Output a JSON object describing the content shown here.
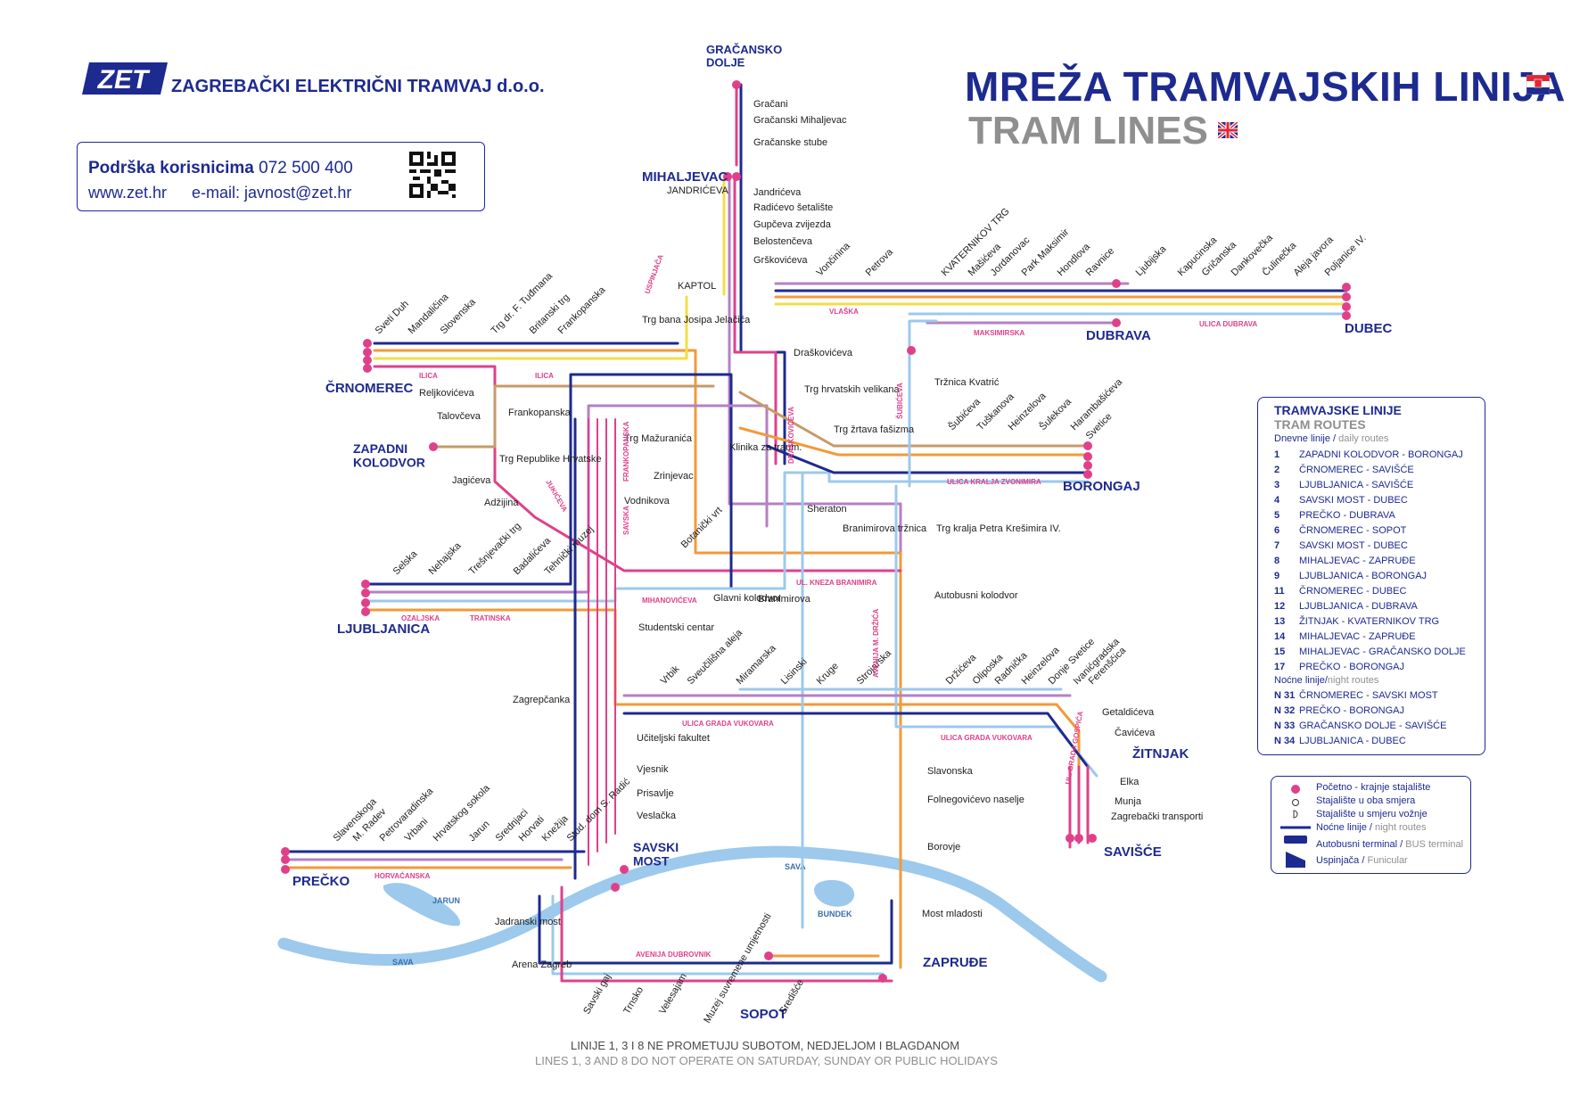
{
  "header": {
    "logo_text": "ZET",
    "company": "ZAGREBAČKI ELEKTRIČNI TRAMVAJ d.o.o.",
    "support_label": "Podrška korisnicima",
    "support_phone": "072 500 400",
    "website": "www.zet.hr",
    "email": "e-mail: javnost@zet.hr",
    "title_hr": "MREŽA TRAMVAJSKIH LINIJA",
    "title_en": "TRAM LINES"
  },
  "colors": {
    "navy": "#1d2a8f",
    "pink": "#e0408a",
    "orange": "#f29a3a",
    "yellow": "#f5dc4a",
    "purple": "#b57fc6",
    "blue": "#3a6fb0",
    "gray": "#8f8f8f",
    "river": "#9cc9ec"
  },
  "terminals": [
    {
      "name": "GRAČANSKO\nDOLJE"
    },
    {
      "name": "MIHALJEVAC"
    },
    {
      "name": "ČRNOMEREC"
    },
    {
      "name": "ZAPADNI\nKOLODVOR"
    },
    {
      "name": "LJUBLJANICA"
    },
    {
      "name": "PREČKO"
    },
    {
      "name": "SAVSKI\nMOST"
    },
    {
      "name": "DUBRAVA"
    },
    {
      "name": "DUBEC"
    },
    {
      "name": "BORONGAJ"
    },
    {
      "name": "ŽITNJAK"
    },
    {
      "name": "SAVIŠĆE"
    },
    {
      "name": "ZAPRUĐE"
    },
    {
      "name": "SOPOT"
    }
  ],
  "stations": {
    "north": [
      "Gračani",
      "Gračanski Mihaljevac",
      "Gračanske stube",
      "Jandrićeva",
      "Radićevo šetalište",
      "Gupčeva zvijezda",
      "Belostenčeva",
      "Grškovićeva"
    ],
    "dubrava_line": [
      "Vončinina",
      "Petrova",
      "KVATERNIKOV TRG",
      "Mašićeva",
      "Jordanovac",
      "Park Maksimir",
      "Hondlova",
      "Ravnice",
      "Ljubijska",
      "Kapucinska",
      "Gričanska",
      "Dankovečka",
      "Čulinečka",
      "Aleja javora",
      "Poljanice IV."
    ],
    "ilica": [
      "Sveti Duh",
      "Mandaličina",
      "Slovenska",
      "Trg dr. F. Tuđmana",
      "Britanski trg",
      "Frankopanska",
      "Trg bana Josipa Jelačića"
    ],
    "west_misc": [
      "Reljkovićeva",
      "Talovčeva",
      "Frankopanska",
      "Trg Republike Hrvatske",
      "Jagićeva",
      "Adžijina",
      "Trg Mažuranića",
      "Zrinjevac",
      "Vodnikova",
      "Klinika za traum.",
      "Draškovićeva",
      "Trg hrvatskih velikana",
      "Trg žrtava fašizma",
      "Sheraton",
      "Glavni kolodvor",
      "Branimirova",
      "Branimirova tržnica",
      "Trg kralja Petra Krešimira IV.",
      "Autobusni kolodvor",
      "Tržnica Kvatrić",
      "Botanički vrt"
    ],
    "borongaj_line": [
      "Šubićeva",
      "Tuškanova",
      "Heinzelova",
      "Šulekova",
      "Harambašićeva",
      "Svetice"
    ],
    "ljubljanica_line": [
      "Selska",
      "Nehajska",
      "Trešnjevački trg",
      "Badalićeva",
      "Tehnički muzej"
    ],
    "vukovarska": [
      "Studentski centar",
      "Vrbik",
      "Sveučilišna aleja",
      "Miramarska",
      "Lisinski",
      "Kruge",
      "Strojarska",
      "Držićeva",
      "Oliposka",
      "Radnička",
      "Heinzelova",
      "Donje Svetice",
      "Ivanićgradska",
      "Ferenščica",
      "Getaldićeva",
      "Čavićeva",
      "Elka",
      "Munja",
      "Zagrebački transporti",
      "Zagrepčanka",
      "Učiteljski fakultet",
      "Vjesnik",
      "Prisavlje",
      "Veslačka"
    ],
    "precko_line": [
      "Slavenskoga",
      "M. Radev",
      "Petrovaradinska",
      "Vrbani",
      "Hrvatskog sokola",
      "Jarun",
      "Srednjaci",
      "Horvati",
      "Knežija",
      "Stud. dom S. Radić"
    ],
    "south": [
      "Jadranski most",
      "Arena Zagreb",
      "Savski gaj",
      "Trnsko",
      "Velesajam",
      "Muzej suvremene umjetnosti",
      "Središće",
      "Slavonska",
      "Folnegovićevo naselje",
      "Borovje",
      "Most mladosti"
    ]
  },
  "streets": [
    "ILICA",
    "ILICA",
    "VLAŠKA",
    "MAKSIMIRSKA",
    "ULICA DUBRAVA",
    "ULICA KRALJA ZVONIMIRA",
    "OZALJSKA",
    "TRATINSKA",
    "MIHANOVIĆEVA",
    "UL. KNEZA BRANIMIRA",
    "ULICA GRADA VUKOVARA",
    "ULICA GRADA VUKOVARA",
    "HORVAĆANSKA",
    "AVENIJA DUBROVNIK",
    "SAVSKA",
    "FRANKOPANSKA",
    "JUKIĆEVA",
    "DRAŠKOVIĆEVA",
    "ŠUBIĆEVA",
    "AVENIJA M. DRŽIĆA",
    "UL. GRADA GOSPIĆA"
  ],
  "rivers": [
    "SAVA",
    "SAVA",
    "JARUN",
    "BUNDEK"
  ],
  "funiculars": [
    "USPINJAČA"
  ],
  "bus_terminals": [
    "KAPTOL",
    "JANDRIĆEVA"
  ],
  "legend": {
    "title_hr": "TRAMVAJSKE LINIJE",
    "title_en": "TRAM ROUTES",
    "day_label": "Dnevne linije /",
    "day_label_en": "daily routes",
    "day_routes": [
      {
        "no": "1",
        "name": "ZAPADNI KOLODVOR - BORONGAJ"
      },
      {
        "no": "2",
        "name": "ČRNOMEREC - SAVIŠĆE"
      },
      {
        "no": "3",
        "name": "LJUBLJANICA - SAVIŠĆE"
      },
      {
        "no": "4",
        "name": "SAVSKI MOST - DUBEC"
      },
      {
        "no": "5",
        "name": "PREČKO - DUBRAVA"
      },
      {
        "no": "6",
        "name": "ČRNOMEREC - SOPOT"
      },
      {
        "no": "7",
        "name": "SAVSKI MOST - DUBEC"
      },
      {
        "no": "8",
        "name": "MIHALJEVAC - ZAPRUĐE"
      },
      {
        "no": "9",
        "name": "LJUBLJANICA - BORONGAJ"
      },
      {
        "no": "11",
        "name": "ČRNOMEREC - DUBEC"
      },
      {
        "no": "12",
        "name": "LJUBLJANICA - DUBRAVA"
      },
      {
        "no": "13",
        "name": "ŽITNJAK - KVATERNIKOV TRG"
      },
      {
        "no": "14",
        "name": "MIHALJEVAC - ZAPRUĐE"
      },
      {
        "no": "15",
        "name": "MIHALJEVAC - GRAČANSKO DOLJE"
      },
      {
        "no": "17",
        "name": "PREČKO - BORONGAJ"
      }
    ],
    "night_label": "Noćne linije/",
    "night_label_en": "night routes",
    "night_routes": [
      {
        "no": "N 31",
        "name": "ČRNOMEREC - SAVSKI MOST"
      },
      {
        "no": "N 32",
        "name": "PREČKO - BORONGAJ"
      },
      {
        "no": "N 33",
        "name": "GRAČANSKO DOLJE - SAVIŠĆE"
      },
      {
        "no": "N 34",
        "name": "LJUBLJANICA - DUBEC"
      }
    ],
    "symbols": [
      {
        "hr": "Početno - krajnje stajalište",
        "en": ""
      },
      {
        "hr": "Stajalište u oba smjera",
        "en": ""
      },
      {
        "hr": "Stajalište u smjeru vožnje",
        "en": ""
      },
      {
        "hr": "Noćne linije /",
        "en": "night routes"
      },
      {
        "hr": "Autobusni terminal /",
        "en": "BUS terminal"
      },
      {
        "hr": "Uspinjača /",
        "en": "Funicular"
      }
    ]
  },
  "notes": {
    "hr": "LINIJE 1, 3 I 8 NE PROMETUJU SUBOTOM, NEDJELJOM I BLAGDANOM",
    "en": "LINES 1, 3 AND 8 DO NOT OPERATE ON SATURDAY, SUNDAY OR PUBLIC HOLIDAYS"
  }
}
